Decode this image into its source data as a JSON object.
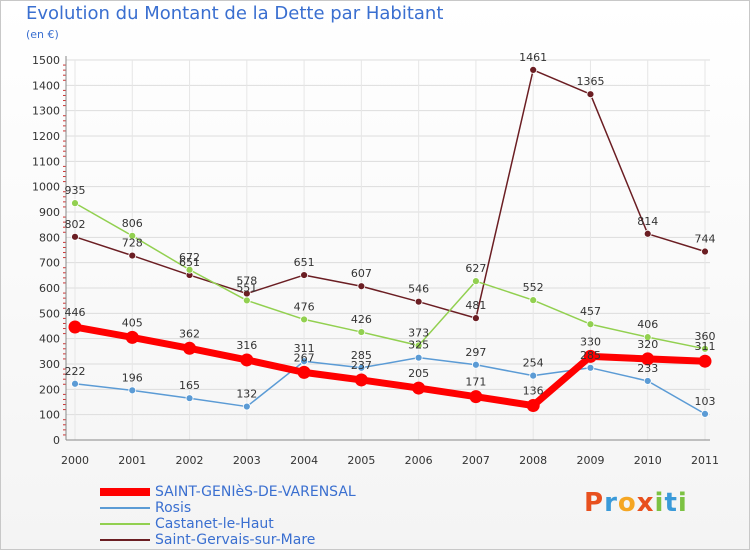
{
  "title": "Evolution du Montant de la Dette par Habitant",
  "subtitle": "(en €)",
  "logo_text": "Proxiti",
  "chart_data": {
    "type": "line",
    "title": "Evolution du Montant de la Dette par Habitant",
    "ylabel": "(en €)",
    "xlabel": "",
    "x": [
      "2000",
      "2001",
      "2002",
      "2003",
      "2004",
      "2005",
      "2006",
      "2007",
      "2008",
      "2009",
      "2010",
      "2011"
    ],
    "ylim": [
      0,
      1500
    ],
    "yticks": [
      0,
      100,
      200,
      300,
      400,
      500,
      600,
      700,
      800,
      900,
      1000,
      1100,
      1200,
      1300,
      1400,
      1500
    ],
    "grid": true,
    "legend_position": "bottom-left",
    "series": [
      {
        "name": "SAINT-GENIèS-DE-VARENSAL",
        "color": "#ff0000",
        "values": [
          446,
          405,
          362,
          316,
          267,
          237,
          205,
          171,
          136,
          330,
          320,
          311
        ],
        "labels": [
          "446",
          "405",
          "362",
          "316",
          "267",
          "237",
          "205",
          "171",
          "136",
          "330",
          "320",
          "311"
        ]
      },
      {
        "name": "Rosis",
        "color": "#5b9bd5",
        "values": [
          222,
          196,
          165,
          132,
          311,
          285,
          325,
          297,
          254,
          285,
          233,
          103
        ],
        "labels": [
          "222",
          "196",
          "165",
          "132",
          "311",
          "285",
          "325",
          "297",
          "254",
          "285",
          "233",
          "103"
        ]
      },
      {
        "name": "Castanet-le-Haut",
        "color": "#92d050",
        "values": [
          935,
          806,
          672,
          551,
          476,
          426,
          373,
          627,
          552,
          457,
          406,
          360
        ],
        "labels": [
          "935",
          "806",
          "672",
          "551",
          "476",
          "426",
          "373",
          "627",
          "552",
          "457",
          "406",
          "360"
        ]
      },
      {
        "name": "Saint-Gervais-sur-Mare",
        "color": "#6b1e23",
        "values": [
          802,
          728,
          651,
          578,
          651,
          607,
          546,
          481,
          1461,
          1365,
          814,
          744
        ],
        "labels": [
          "802",
          "728",
          "651",
          "578",
          "651",
          "607",
          "546",
          "481",
          "1461",
          "1365",
          "814",
          "744"
        ]
      }
    ]
  }
}
